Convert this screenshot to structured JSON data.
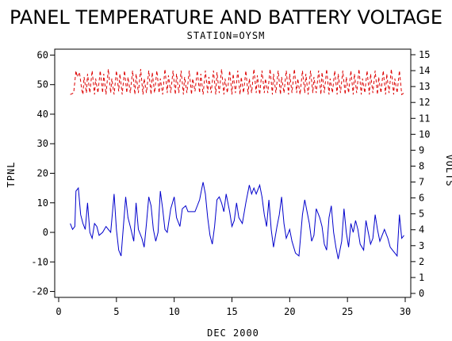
{
  "chart_data": {
    "type": "line",
    "title": "PANEL TEMPERATURE AND BATTERY VOLTAGE",
    "subtitle": "STATION=OYSM",
    "xlabel": "DEC 2000",
    "ylabel_left": "TPNL",
    "ylabel_right": "VOLTS",
    "xlim": [
      0,
      30
    ],
    "ylim_left": [
      -22,
      62
    ],
    "ylim_right": [
      0,
      15
    ],
    "x_ticks": [
      0,
      5,
      10,
      15,
      20,
      25,
      30
    ],
    "y_left_ticks": [
      -20,
      -10,
      0,
      10,
      20,
      30,
      40,
      50,
      60
    ],
    "y_right_ticks": [
      0,
      1,
      2,
      3,
      4,
      5,
      6,
      7,
      8,
      9,
      10,
      11,
      12,
      13,
      14,
      15
    ],
    "grid": false,
    "series": [
      {
        "axis": "left",
        "color": "#0000cc",
        "style": "solid",
        "points": [
          [
            1.0,
            3
          ],
          [
            1.2,
            1
          ],
          [
            1.4,
            2
          ],
          [
            1.5,
            14
          ],
          [
            1.7,
            15
          ],
          [
            1.9,
            6
          ],
          [
            2.1,
            3
          ],
          [
            2.3,
            1
          ],
          [
            2.5,
            10
          ],
          [
            2.7,
            0
          ],
          [
            2.9,
            -2
          ],
          [
            3.1,
            3
          ],
          [
            3.3,
            2
          ],
          [
            3.5,
            -1
          ],
          [
            3.8,
            0
          ],
          [
            4.1,
            2
          ],
          [
            4.3,
            1
          ],
          [
            4.5,
            0
          ],
          [
            4.8,
            13
          ],
          [
            5.0,
            1
          ],
          [
            5.2,
            -6
          ],
          [
            5.4,
            -8
          ],
          [
            5.6,
            2
          ],
          [
            5.8,
            12
          ],
          [
            6.0,
            5
          ],
          [
            6.2,
            2
          ],
          [
            6.5,
            -3
          ],
          [
            6.7,
            10
          ],
          [
            6.9,
            1
          ],
          [
            7.2,
            -2
          ],
          [
            7.4,
            -5
          ],
          [
            7.6,
            3
          ],
          [
            7.8,
            12
          ],
          [
            8.0,
            9
          ],
          [
            8.2,
            1
          ],
          [
            8.4,
            -3
          ],
          [
            8.6,
            0
          ],
          [
            8.8,
            14
          ],
          [
            9.0,
            8
          ],
          [
            9.2,
            1
          ],
          [
            9.4,
            0
          ],
          [
            9.7,
            8
          ],
          [
            10.0,
            12
          ],
          [
            10.2,
            5
          ],
          [
            10.5,
            2
          ],
          [
            10.7,
            8
          ],
          [
            11.0,
            9
          ],
          [
            11.2,
            7
          ],
          [
            11.5,
            7
          ],
          [
            11.8,
            7
          ],
          [
            12.0,
            9
          ],
          [
            12.2,
            11
          ],
          [
            12.4,
            15
          ],
          [
            12.5,
            17
          ],
          [
            12.7,
            13
          ],
          [
            12.9,
            5
          ],
          [
            13.1,
            -1
          ],
          [
            13.3,
            -4
          ],
          [
            13.5,
            2
          ],
          [
            13.7,
            11
          ],
          [
            13.9,
            12
          ],
          [
            14.1,
            10
          ],
          [
            14.3,
            7
          ],
          [
            14.5,
            13
          ],
          [
            14.8,
            7
          ],
          [
            15.0,
            2
          ],
          [
            15.2,
            4
          ],
          [
            15.4,
            10
          ],
          [
            15.6,
            5
          ],
          [
            15.9,
            3
          ],
          [
            16.2,
            10
          ],
          [
            16.5,
            16
          ],
          [
            16.7,
            13
          ],
          [
            16.9,
            15
          ],
          [
            17.1,
            13
          ],
          [
            17.4,
            16
          ],
          [
            17.6,
            12
          ],
          [
            17.8,
            6
          ],
          [
            18.0,
            2
          ],
          [
            18.2,
            11
          ],
          [
            18.4,
            1
          ],
          [
            18.6,
            -5
          ],
          [
            18.9,
            2
          ],
          [
            19.1,
            6
          ],
          [
            19.3,
            12
          ],
          [
            19.5,
            3
          ],
          [
            19.7,
            -2
          ],
          [
            20.0,
            1
          ],
          [
            20.2,
            -3
          ],
          [
            20.5,
            -7
          ],
          [
            20.8,
            -8
          ],
          [
            21.1,
            6
          ],
          [
            21.3,
            11
          ],
          [
            21.5,
            7
          ],
          [
            21.7,
            3
          ],
          [
            21.9,
            -3
          ],
          [
            22.1,
            -1
          ],
          [
            22.3,
            8
          ],
          [
            22.6,
            5
          ],
          [
            22.8,
            2
          ],
          [
            23.0,
            -4
          ],
          [
            23.2,
            -6
          ],
          [
            23.4,
            5
          ],
          [
            23.6,
            9
          ],
          [
            23.8,
            0
          ],
          [
            24.0,
            -5
          ],
          [
            24.2,
            -9
          ],
          [
            24.5,
            -3
          ],
          [
            24.7,
            8
          ],
          [
            24.9,
            0
          ],
          [
            25.1,
            -5
          ],
          [
            25.3,
            3
          ],
          [
            25.5,
            0
          ],
          [
            25.7,
            4
          ],
          [
            25.9,
            1
          ],
          [
            26.1,
            -4
          ],
          [
            26.4,
            -6
          ],
          [
            26.6,
            4
          ],
          [
            26.8,
            0
          ],
          [
            27.0,
            -4
          ],
          [
            27.2,
            -2
          ],
          [
            27.4,
            6
          ],
          [
            27.6,
            1
          ],
          [
            27.8,
            -3
          ],
          [
            28.0,
            -1
          ],
          [
            28.2,
            1
          ],
          [
            28.5,
            -2
          ],
          [
            28.7,
            -5
          ],
          [
            28.9,
            -6
          ],
          [
            29.1,
            -7
          ],
          [
            29.3,
            -8
          ],
          [
            29.5,
            6
          ],
          [
            29.7,
            -2
          ],
          [
            29.9,
            -1
          ]
        ]
      },
      {
        "axis": "right",
        "color": "#dd0000",
        "style": "dashed",
        "points": [
          [
            1.0,
            12.5
          ],
          [
            1.3,
            12.6
          ],
          [
            1.5,
            14.0
          ],
          [
            1.6,
            13.6
          ],
          [
            1.8,
            13.9
          ],
          [
            2.0,
            12.8
          ],
          [
            2.1,
            12.5
          ],
          [
            2.2,
            13.6
          ],
          [
            2.4,
            12.6
          ],
          [
            2.5,
            13.8
          ],
          [
            2.7,
            12.6
          ],
          [
            2.9,
            14.0
          ],
          [
            3.1,
            12.5
          ],
          [
            3.2,
            13.5
          ],
          [
            3.4,
            12.6
          ],
          [
            3.6,
            14.0
          ],
          [
            3.8,
            12.6
          ],
          [
            3.9,
            13.8
          ],
          [
            4.1,
            12.5
          ],
          [
            4.3,
            14.1
          ],
          [
            4.5,
            12.6
          ],
          [
            4.6,
            13.5
          ],
          [
            4.8,
            12.5
          ],
          [
            5.0,
            14.0
          ],
          [
            5.2,
            12.7
          ],
          [
            5.3,
            13.8
          ],
          [
            5.5,
            12.5
          ],
          [
            5.7,
            14.0
          ],
          [
            5.9,
            12.6
          ],
          [
            6.0,
            13.6
          ],
          [
            6.2,
            12.6
          ],
          [
            6.4,
            14.0
          ],
          [
            6.6,
            12.5
          ],
          [
            6.7,
            13.8
          ],
          [
            6.9,
            12.6
          ],
          [
            7.1,
            14.1
          ],
          [
            7.3,
            12.5
          ],
          [
            7.4,
            13.5
          ],
          [
            7.6,
            12.6
          ],
          [
            7.8,
            14.0
          ],
          [
            8.0,
            12.5
          ],
          [
            8.1,
            13.9
          ],
          [
            8.3,
            12.6
          ],
          [
            8.5,
            14.0
          ],
          [
            8.7,
            12.6
          ],
          [
            8.8,
            13.5
          ],
          [
            9.0,
            12.5
          ],
          [
            9.2,
            14.1
          ],
          [
            9.4,
            12.6
          ],
          [
            9.5,
            13.7
          ],
          [
            9.7,
            12.6
          ],
          [
            9.9,
            14.0
          ],
          [
            10.1,
            12.5
          ],
          [
            10.2,
            13.8
          ],
          [
            10.4,
            12.6
          ],
          [
            10.6,
            14.0
          ],
          [
            10.8,
            12.5
          ],
          [
            10.9,
            13.6
          ],
          [
            11.1,
            12.6
          ],
          [
            11.3,
            14.0
          ],
          [
            11.5,
            12.5
          ],
          [
            11.6,
            13.5
          ],
          [
            11.8,
            12.7
          ],
          [
            12.0,
            14.0
          ],
          [
            12.2,
            12.6
          ],
          [
            12.3,
            13.8
          ],
          [
            12.5,
            12.5
          ],
          [
            12.7,
            14.0
          ],
          [
            12.9,
            12.6
          ],
          [
            13.0,
            13.6
          ],
          [
            13.2,
            12.6
          ],
          [
            13.4,
            14.0
          ],
          [
            13.6,
            12.5
          ],
          [
            13.7,
            13.9
          ],
          [
            13.9,
            12.6
          ],
          [
            14.1,
            14.1
          ],
          [
            14.3,
            12.5
          ],
          [
            14.4,
            13.5
          ],
          [
            14.6,
            12.6
          ],
          [
            14.8,
            14.0
          ],
          [
            15.0,
            12.5
          ],
          [
            15.1,
            13.8
          ],
          [
            15.3,
            12.6
          ],
          [
            15.5,
            14.0
          ],
          [
            15.7,
            12.5
          ],
          [
            15.8,
            13.6
          ],
          [
            16.0,
            12.6
          ],
          [
            16.2,
            14.0
          ],
          [
            16.4,
            12.5
          ],
          [
            16.5,
            13.5
          ],
          [
            16.7,
            12.6
          ],
          [
            16.9,
            14.1
          ],
          [
            17.1,
            12.6
          ],
          [
            17.2,
            13.7
          ],
          [
            17.4,
            12.5
          ],
          [
            17.6,
            14.0
          ],
          [
            17.8,
            12.6
          ],
          [
            17.9,
            13.5
          ],
          [
            18.1,
            12.6
          ],
          [
            18.3,
            14.1
          ],
          [
            18.5,
            12.5
          ],
          [
            18.6,
            13.8
          ],
          [
            18.8,
            12.6
          ],
          [
            19.0,
            14.0
          ],
          [
            19.2,
            12.5
          ],
          [
            19.3,
            13.6
          ],
          [
            19.5,
            12.6
          ],
          [
            19.7,
            14.0
          ],
          [
            19.9,
            12.5
          ],
          [
            20.0,
            13.8
          ],
          [
            20.2,
            12.6
          ],
          [
            20.4,
            14.1
          ],
          [
            20.6,
            12.6
          ],
          [
            20.7,
            13.5
          ],
          [
            20.9,
            12.5
          ],
          [
            21.1,
            14.0
          ],
          [
            21.3,
            12.6
          ],
          [
            21.4,
            13.8
          ],
          [
            21.6,
            12.5
          ],
          [
            21.8,
            14.0
          ],
          [
            22.0,
            12.6
          ],
          [
            22.1,
            13.6
          ],
          [
            22.3,
            12.6
          ],
          [
            22.5,
            14.0
          ],
          [
            22.7,
            12.5
          ],
          [
            22.8,
            13.9
          ],
          [
            23.0,
            12.6
          ],
          [
            23.2,
            14.1
          ],
          [
            23.4,
            12.5
          ],
          [
            23.5,
            13.5
          ],
          [
            23.7,
            12.6
          ],
          [
            23.9,
            14.0
          ],
          [
            24.1,
            12.5
          ],
          [
            24.2,
            13.8
          ],
          [
            24.4,
            12.6
          ],
          [
            24.6,
            14.0
          ],
          [
            24.8,
            12.5
          ],
          [
            24.9,
            13.6
          ],
          [
            25.1,
            12.6
          ],
          [
            25.3,
            14.0
          ],
          [
            25.5,
            12.5
          ],
          [
            25.6,
            13.8
          ],
          [
            25.8,
            12.6
          ],
          [
            26.0,
            14.1
          ],
          [
            26.2,
            12.5
          ],
          [
            26.3,
            13.5
          ],
          [
            26.5,
            12.6
          ],
          [
            26.7,
            14.0
          ],
          [
            26.9,
            12.5
          ],
          [
            27.0,
            13.8
          ],
          [
            27.2,
            12.6
          ],
          [
            27.4,
            14.0
          ],
          [
            27.6,
            12.5
          ],
          [
            27.7,
            13.6
          ],
          [
            27.9,
            12.6
          ],
          [
            28.1,
            14.0
          ],
          [
            28.3,
            12.5
          ],
          [
            28.4,
            13.8
          ],
          [
            28.6,
            12.6
          ],
          [
            28.8,
            14.1
          ],
          [
            29.0,
            12.5
          ],
          [
            29.1,
            13.5
          ],
          [
            29.3,
            12.6
          ],
          [
            29.5,
            14.0
          ],
          [
            29.7,
            12.5
          ],
          [
            29.9,
            12.6
          ]
        ]
      }
    ]
  }
}
